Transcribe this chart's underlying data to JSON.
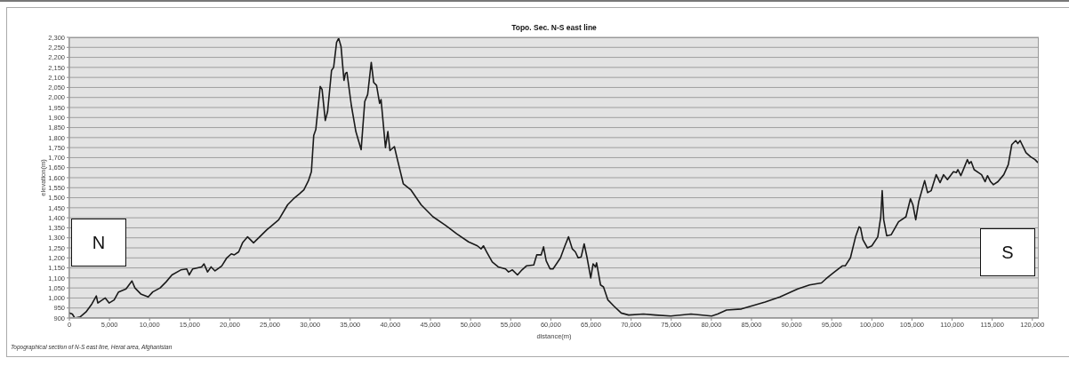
{
  "chart_data": {
    "type": "line",
    "title": "Topo. Sec. N-S east line",
    "xlabel": "distance(m)",
    "ylabel": "elevation(m)",
    "annotations": [
      "N",
      "S",
      "Topographical section of N-S east line, Herat area, Afghanistan"
    ],
    "x": [
      0,
      370,
      670,
      1330,
      2070,
      2800,
      3360,
      3550,
      3900,
      4470,
      4950,
      5580,
      6130,
      7060,
      7800,
      8170,
      8900,
      9830,
      10390,
      11310,
      12050,
      12780,
      13890,
      14630,
      14930,
      15370,
      16480,
      16780,
      17220,
      17660,
      18150,
      18990,
      19620,
      20180,
      20550,
      21100,
      21580,
      22210,
      22950,
      24610,
      26090,
      27200,
      27940,
      28680,
      29230,
      29790,
      30160,
      30450,
      30710,
      31260,
      31490,
      31890,
      32180,
      32670,
      32930,
      33300,
      33560,
      33850,
      34220,
      34400,
      34590,
      35140,
      35700,
      36360,
      36810,
      37170,
      37620,
      37920,
      38280,
      38660,
      38840,
      39390,
      39690,
      39950,
      40500,
      40880,
      41610,
      42540,
      43830,
      45310,
      46790,
      48260,
      49740,
      50850,
      51300,
      51600,
      52000,
      52700,
      53440,
      54360,
      54730,
      55210,
      55840,
      56400,
      56950,
      57870,
      58240,
      58790,
      59090,
      59420,
      59900,
      60270,
      61200,
      61750,
      62200,
      62670,
      63050,
      63410,
      63780,
      64150,
      64520,
      64970,
      65260,
      65560,
      65700,
      66190,
      66560,
      67110,
      67850,
      68770,
      69700,
      71540,
      73020,
      74940,
      77460,
      80040,
      80780,
      81890,
      83740,
      86700,
      88550,
      90760,
      92240,
      93720,
      94270,
      95200,
      96310,
      96680,
      97330,
      97970,
      98410,
      98590,
      98890,
      99450,
      100000,
      100740,
      101110,
      101290,
      101480,
      101850,
      102400,
      103330,
      104250,
      104810,
      105110,
      105470,
      105840,
      106580,
      106950,
      107390,
      108020,
      108500,
      108940,
      109420,
      110170,
      110530,
      110720,
      111090,
      111450,
      111900,
      112120,
      112380,
      112750,
      113300,
      113670,
      114120,
      114410,
      114800,
      115150,
      115710,
      116440,
      117000,
      117440,
      117930,
      118190,
      118480,
      119210,
      119770,
      120330,
      120700
    ],
    "values": [
      925,
      920,
      900,
      905,
      930,
      970,
      1010,
      975,
      985,
      1000,
      975,
      990,
      1030,
      1045,
      1085,
      1050,
      1020,
      1005,
      1030,
      1050,
      1080,
      1115,
      1140,
      1145,
      1115,
      1145,
      1155,
      1170,
      1130,
      1155,
      1135,
      1160,
      1200,
      1220,
      1215,
      1230,
      1275,
      1305,
      1275,
      1340,
      1390,
      1465,
      1495,
      1520,
      1540,
      1585,
      1630,
      1810,
      1840,
      2055,
      2040,
      1885,
      1930,
      2135,
      2150,
      2275,
      2295,
      2255,
      2085,
      2120,
      2125,
      1960,
      1830,
      1740,
      1980,
      2015,
      2175,
      2075,
      2060,
      1970,
      1990,
      1750,
      1830,
      1735,
      1755,
      1690,
      1570,
      1540,
      1465,
      1405,
      1365,
      1320,
      1280,
      1260,
      1245,
      1260,
      1230,
      1180,
      1155,
      1145,
      1130,
      1140,
      1115,
      1140,
      1160,
      1165,
      1215,
      1215,
      1255,
      1185,
      1145,
      1145,
      1200,
      1260,
      1305,
      1245,
      1230,
      1200,
      1205,
      1270,
      1200,
      1100,
      1170,
      1155,
      1175,
      1065,
      1055,
      990,
      960,
      925,
      915,
      920,
      915,
      910,
      920,
      910,
      920,
      940,
      945,
      980,
      1005,
      1045,
      1065,
      1075,
      1095,
      1125,
      1160,
      1160,
      1200,
      1305,
      1355,
      1350,
      1290,
      1250,
      1260,
      1305,
      1405,
      1535,
      1390,
      1310,
      1315,
      1380,
      1405,
      1495,
      1465,
      1390,
      1480,
      1585,
      1525,
      1535,
      1615,
      1575,
      1615,
      1590,
      1630,
      1625,
      1640,
      1610,
      1645,
      1690,
      1670,
      1680,
      1640,
      1625,
      1615,
      1580,
      1610,
      1580,
      1565,
      1580,
      1615,
      1665,
      1765,
      1785,
      1770,
      1785,
      1725,
      1705,
      1690,
      1675
    ],
    "color": "#1a1a1a",
    "marker": "none",
    "grid": "y",
    "xlim": [
      0,
      120800
    ],
    "xticks": [
      0,
      {
        "value": 5000,
        "label": "5,000"
      },
      {
        "value": 10000,
        "label": "10,000"
      },
      {
        "value": 15000,
        "label": "15,000"
      },
      {
        "value": 20000,
        "label": "20,000"
      },
      {
        "value": 25000,
        "label": "25,000"
      },
      {
        "value": 30000,
        "label": "30,000"
      },
      {
        "value": 35000,
        "label": "35,000"
      },
      {
        "value": 40000,
        "label": "40,000"
      },
      {
        "value": 45000,
        "label": "45,000"
      },
      {
        "value": 50000,
        "label": "50,000"
      },
      {
        "value": 55000,
        "label": "55,000"
      },
      {
        "value": 60000,
        "label": "60,000"
      },
      {
        "value": 65000,
        "label": "65,000"
      },
      {
        "value": 70000,
        "label": "70,000"
      },
      {
        "value": 75000,
        "label": "75,000"
      },
      {
        "value": 80000,
        "label": "80,000"
      },
      {
        "value": 85000,
        "label": "85,000"
      },
      {
        "value": 90000,
        "label": "90,000"
      },
      {
        "value": 95000,
        "label": "95,000"
      },
      {
        "value": 100000,
        "label": "100,000"
      },
      {
        "value": 105000,
        "label": "105,000"
      },
      {
        "value": 110000,
        "label": "110,000"
      },
      {
        "value": 115000,
        "label": "115,000"
      },
      {
        "value": 120000,
        "label": "120,000"
      }
    ],
    "ylim": [
      900,
      2300
    ],
    "yticks": [
      900,
      950,
      {
        "value": 1000,
        "label": "1,000"
      },
      {
        "value": 1050,
        "label": "1,050"
      },
      {
        "value": 1100,
        "label": "1,100"
      },
      {
        "value": 1150,
        "label": "1,150"
      },
      {
        "value": 1200,
        "label": "1,200"
      },
      {
        "value": 1250,
        "label": "1,250"
      },
      {
        "value": 1300,
        "label": "1,300"
      },
      {
        "value": 1350,
        "label": "1,350"
      },
      {
        "value": 1400,
        "label": "1,400"
      },
      {
        "value": 1450,
        "label": "1,450"
      },
      {
        "value": 1500,
        "label": "1,500"
      },
      {
        "value": 1550,
        "label": "1,550"
      },
      {
        "value": 1600,
        "label": "1,600"
      },
      {
        "value": 1650,
        "label": "1,650"
      },
      {
        "value": 1700,
        "label": "1,700"
      },
      {
        "value": 1750,
        "label": "1,750"
      },
      {
        "value": 1800,
        "label": "1,800"
      },
      {
        "value": 1850,
        "label": "1,850"
      },
      {
        "value": 1900,
        "label": "1,900"
      },
      {
        "value": 1950,
        "label": "1,950"
      },
      {
        "value": 2000,
        "label": "2,000"
      },
      {
        "value": 2050,
        "label": "2,050"
      },
      {
        "value": 2100,
        "label": "2,100"
      },
      {
        "value": 2150,
        "label": "2,150"
      },
      {
        "value": 2200,
        "label": "2,200"
      },
      {
        "value": 2250,
        "label": "2,250"
      },
      {
        "value": 2300,
        "label": "2,300"
      }
    ]
  }
}
